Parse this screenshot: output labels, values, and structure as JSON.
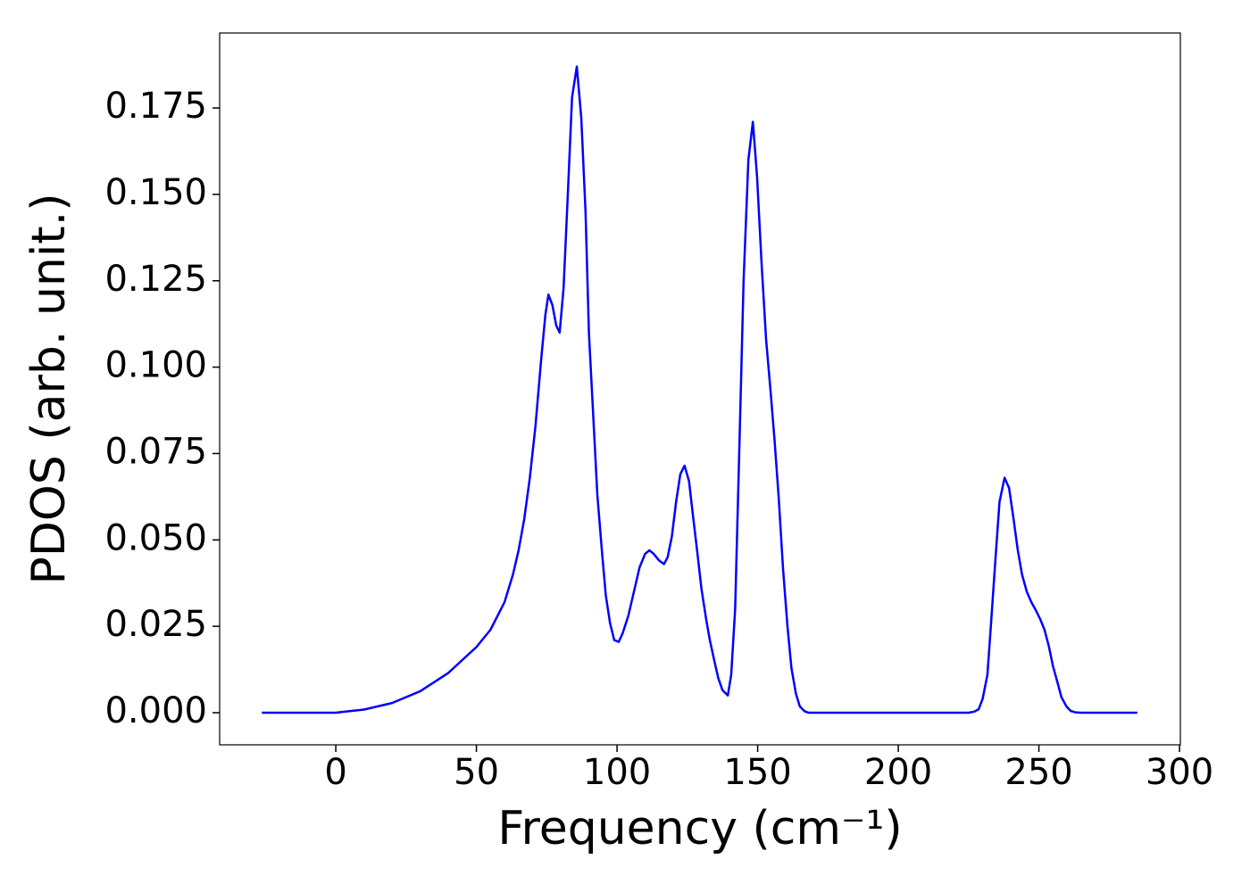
{
  "chart_data": {
    "type": "line",
    "xlabel": "Frequency (cm⁻¹)",
    "ylabel": "PDOS (arb. unit.)",
    "xlim": [
      -41.3,
      300.3
    ],
    "ylim": [
      -0.0093,
      0.1967
    ],
    "xticks": [
      0,
      50,
      100,
      150,
      200,
      250,
      300
    ],
    "yticks": [
      {
        "value": 0,
        "label": "0.000"
      },
      0.025,
      {
        "value": 0.05,
        "label": "0.050"
      },
      0.075,
      {
        "value": 0.1,
        "label": "0.100"
      },
      0.125,
      {
        "value": 0.15,
        "label": "0.150"
      },
      0.175
    ],
    "series": [
      {
        "name": "PDOS",
        "color": "#0000ff",
        "x": [
          -26.3,
          0,
          10,
          20,
          30,
          40,
          50,
          55,
          60,
          63,
          65,
          67,
          69,
          71,
          73,
          74.5,
          75.6,
          77,
          78.4,
          79.6,
          81,
          82.5,
          84,
          85.7,
          87.3,
          88.8,
          90,
          91.6,
          93,
          94.6,
          96,
          97.5,
          99,
          100.6,
          102,
          104,
          106,
          108,
          110,
          111.5,
          113,
          115,
          116.7,
          118,
          119.5,
          121,
          122.5,
          124,
          125.6,
          127,
          128.6,
          130,
          131.7,
          133,
          134.6,
          136,
          137.5,
          139.4,
          140.6,
          142,
          143.6,
          145,
          146.7,
          148.3,
          149.8,
          151.4,
          153,
          154.6,
          156,
          157.5,
          159,
          160.6,
          162,
          163.6,
          165,
          166.7,
          168,
          200,
          225,
          227,
          228.6,
          230,
          231.7,
          233,
          234.6,
          236,
          237.8,
          239.4,
          241,
          242.5,
          244,
          245.7,
          247.3,
          249,
          250.5,
          252,
          253.6,
          255,
          256.7,
          258,
          259.8,
          261.3,
          263,
          265,
          285
        ],
        "values": [
          0,
          0,
          0.0009,
          0.0028,
          0.0062,
          0.0115,
          0.019,
          0.024,
          0.032,
          0.04,
          0.047,
          0.056,
          0.068,
          0.083,
          0.102,
          0.115,
          0.121,
          0.118,
          0.112,
          0.11,
          0.123,
          0.15,
          0.178,
          0.187,
          0.172,
          0.145,
          0.11,
          0.085,
          0.063,
          0.047,
          0.034,
          0.026,
          0.021,
          0.0205,
          0.023,
          0.028,
          0.035,
          0.042,
          0.046,
          0.047,
          0.046,
          0.044,
          0.043,
          0.045,
          0.051,
          0.061,
          0.069,
          0.0715,
          0.067,
          0.057,
          0.046,
          0.036,
          0.027,
          0.021,
          0.015,
          0.01,
          0.0065,
          0.005,
          0.011,
          0.03,
          0.08,
          0.125,
          0.16,
          0.171,
          0.155,
          0.13,
          0.108,
          0.093,
          0.079,
          0.062,
          0.042,
          0.025,
          0.013,
          0.0055,
          0.0018,
          0.0004,
          0,
          0,
          0,
          0.0003,
          0.001,
          0.004,
          0.011,
          0.026,
          0.045,
          0.061,
          0.068,
          0.065,
          0.056,
          0.047,
          0.04,
          0.035,
          0.032,
          0.0295,
          0.027,
          0.024,
          0.019,
          0.0135,
          0.0085,
          0.0045,
          0.0018,
          0.0005,
          0.0001,
          0,
          0
        ]
      }
    ]
  }
}
